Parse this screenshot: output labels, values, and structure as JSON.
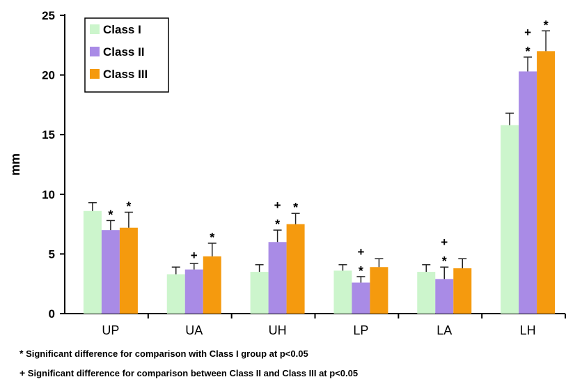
{
  "chart_data": {
    "type": "bar",
    "ylabel": "mm",
    "xlabel": "",
    "ylim": [
      0,
      25
    ],
    "yticks": [
      0,
      5,
      10,
      15,
      20,
      25
    ],
    "grid": false,
    "legend_position": "top-left",
    "categories": [
      "UP",
      "UA",
      "UH",
      "LP",
      "LA",
      "LH"
    ],
    "series": [
      {
        "name": "Class I",
        "color": "#ccf5cc",
        "values": [
          8.6,
          3.3,
          3.5,
          3.6,
          3.5,
          15.8
        ],
        "errors": [
          0.7,
          0.6,
          0.6,
          0.5,
          0.6,
          1.0
        ],
        "markers": [
          "",
          "",
          "",
          "",
          "",
          ""
        ]
      },
      {
        "name": "Class II",
        "color": "#a98be6",
        "values": [
          7.0,
          3.7,
          6.0,
          2.6,
          2.9,
          20.3
        ],
        "errors": [
          0.8,
          0.5,
          1.0,
          0.5,
          1.0,
          1.2
        ],
        "markers": [
          "*",
          "+",
          "+ *",
          "+ *",
          "+ *",
          "+ *"
        ]
      },
      {
        "name": "Class III",
        "color": "#f59a0e",
        "values": [
          7.2,
          4.8,
          7.5,
          3.9,
          3.8,
          22.0
        ],
        "errors": [
          1.3,
          1.1,
          0.9,
          0.7,
          0.8,
          1.7
        ],
        "markers": [
          "*",
          "*",
          "*",
          "",
          "",
          "*"
        ]
      }
    ]
  },
  "footnotes": [
    {
      "mark": "*",
      "text": " Significant difference for comparison with Class I group at p<0.05"
    },
    {
      "mark": "+",
      "text": " Significant difference for comparison between Class II and Class III at p<0.05"
    }
  ]
}
